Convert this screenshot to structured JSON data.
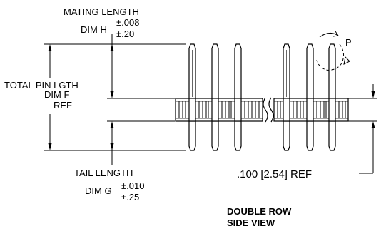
{
  "labels": {
    "mating": {
      "line1": "MATING LENGTH",
      "dim": "DIM H",
      "tol_top": "±.008",
      "tol_bottom": "±.20"
    },
    "total": {
      "line1": "TOTAL PIN LGTH",
      "line2": "DIM F",
      "line3": "REF"
    },
    "tail": {
      "line1": "TAIL LENGTH",
      "dim": "DIM G",
      "tol_top": "±.010",
      "tol_bottom": "±.25"
    },
    "pitch": ".100 [2.54] REF",
    "rotation": "P",
    "view_title": {
      "line1": "DOUBLE ROW",
      "line2": "SIDE VIEW"
    }
  }
}
